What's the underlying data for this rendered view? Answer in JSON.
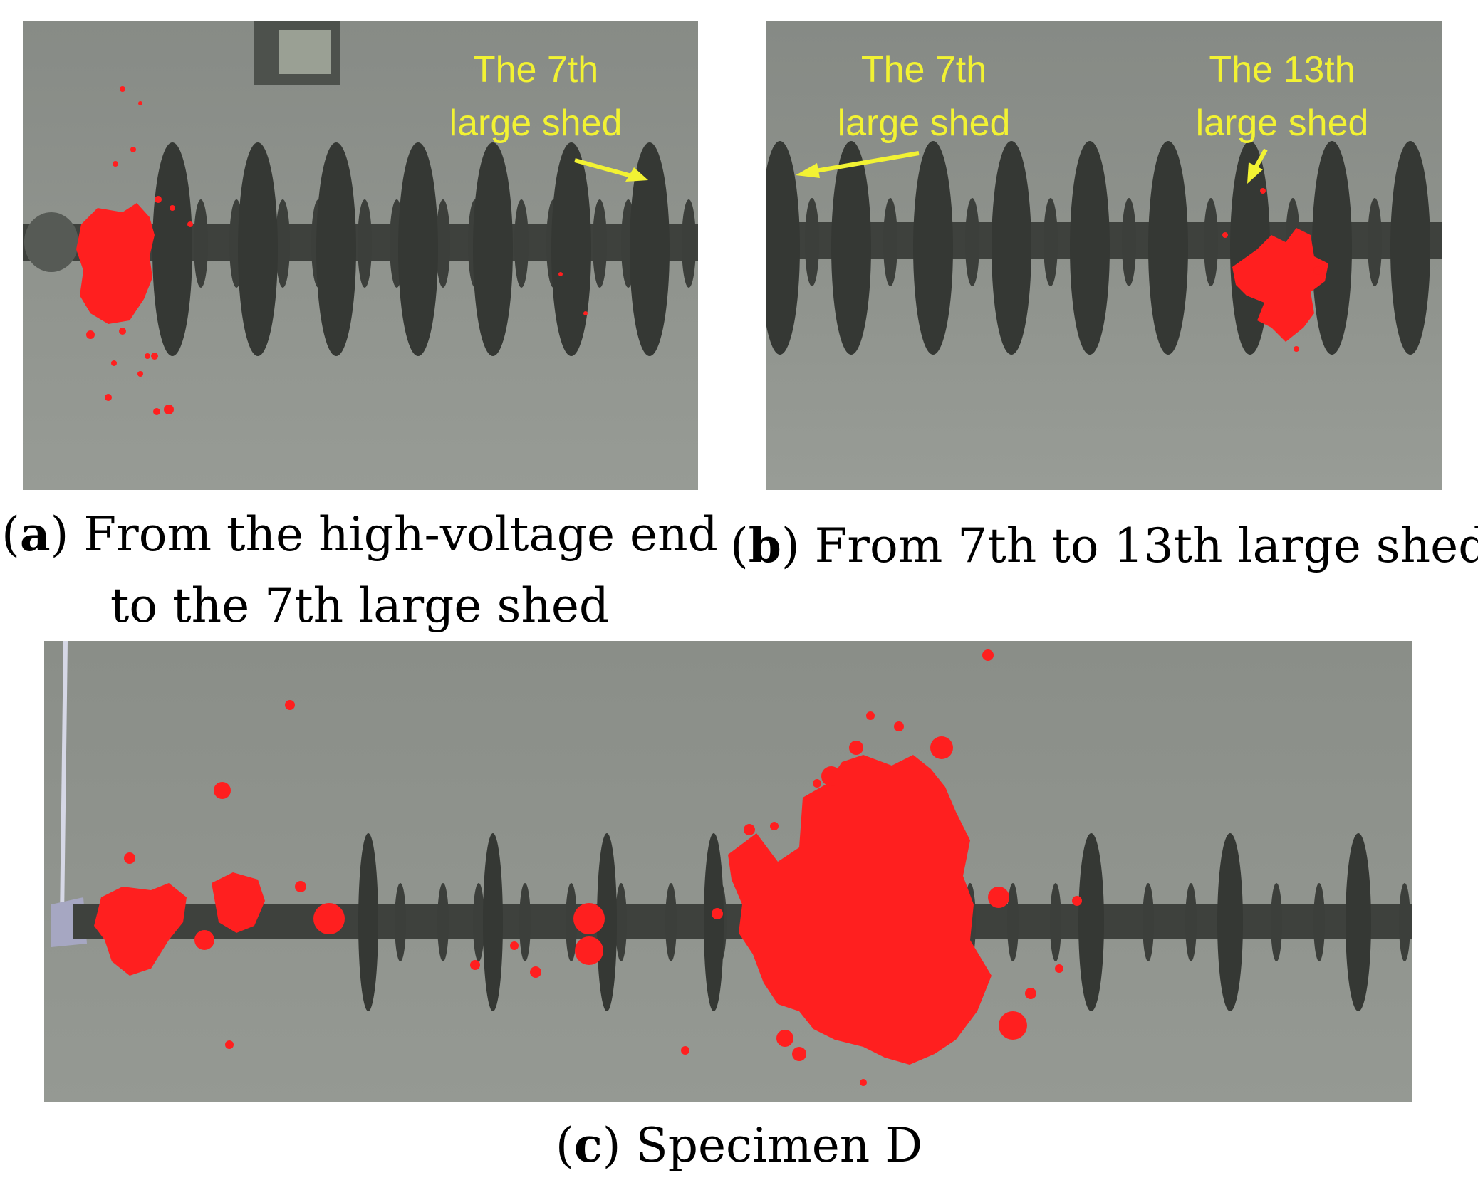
{
  "panels": {
    "a": {
      "image_labels": [
        {
          "line1": "The 7th",
          "line2": "large shed"
        }
      ],
      "caption": {
        "letter": "a",
        "line1": "From the high-voltage end",
        "line2": "to the 7th large shed"
      }
    },
    "b": {
      "image_labels": [
        {
          "line1": "The 7th",
          "line2": "large shed"
        },
        {
          "line1": "The 13th",
          "line2": "large shed"
        }
      ],
      "caption": {
        "letter": "b",
        "text": "From 7th to 13th large shed"
      }
    },
    "c": {
      "caption": {
        "letter": "c",
        "text": "Specimen D"
      }
    }
  },
  "colors": {
    "background_gray": "#8d918b",
    "insulator_dark": "#3e413d",
    "discharge_red": "#ff1f1f",
    "annotation_yellow": "#f2f233"
  }
}
